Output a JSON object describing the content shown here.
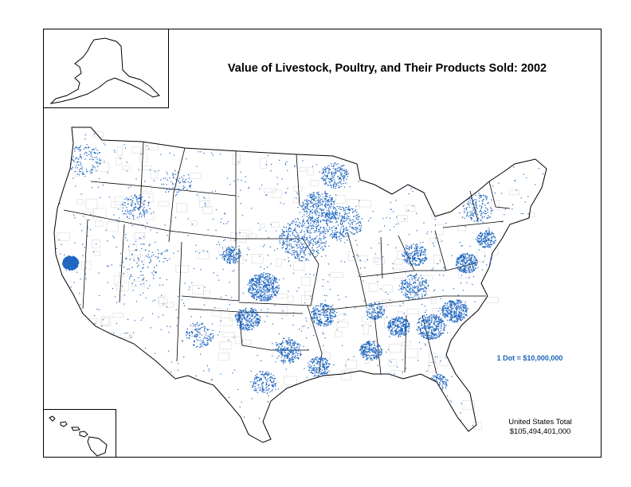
{
  "title": "Value of Livestock, Poultry, and Their Products Sold:  2002",
  "legend": {
    "dot_value_label": "1 Dot = $10,000,000"
  },
  "total": {
    "label": "United States Total",
    "value": "$105,494,401,000"
  },
  "colors": {
    "dot": "#1f66c1",
    "border": "#000000",
    "county_line": "#c8c8c8"
  },
  "inset_maps": [
    "Alaska",
    "Hawaii"
  ]
}
